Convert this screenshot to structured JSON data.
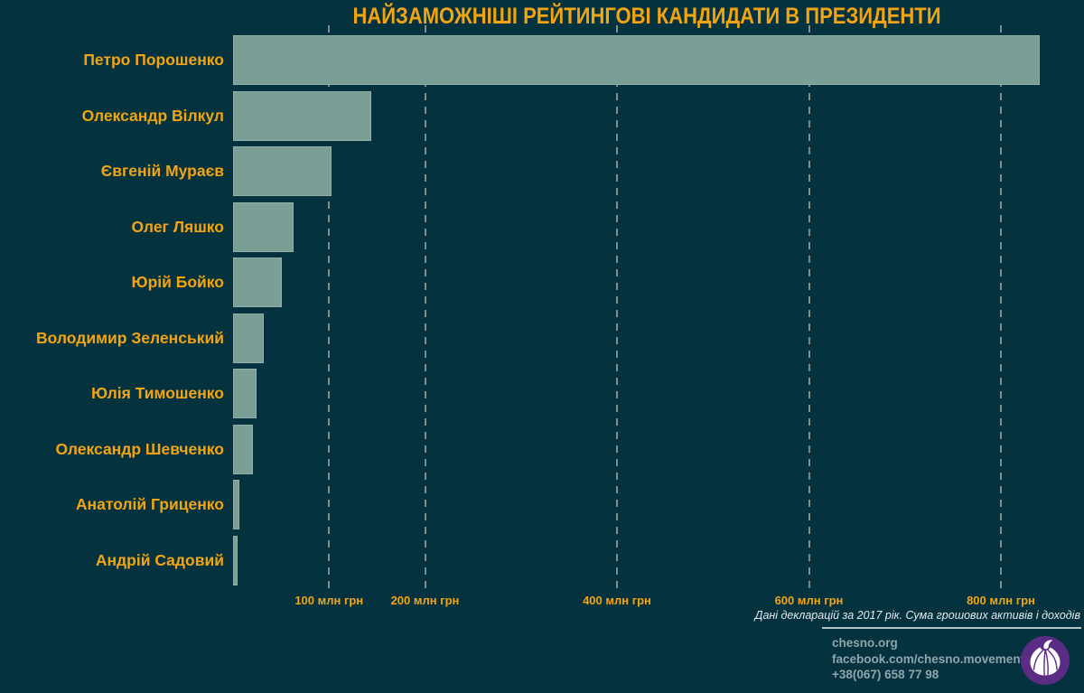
{
  "title": "НАЙЗАМОЖНІШІ РЕЙТИНГОВІ КАНДИДАТИ В ПРЕЗИДЕНТИ",
  "chart_data": {
    "type": "bar",
    "orientation": "horizontal",
    "title": "НАЙЗАМОЖНІШІ РЕЙТИНГОВІ КАНДИДАТИ В ПРЕЗИДЕНТИ",
    "unit": "млн грн",
    "categories": [
      "Петро Порошенко",
      "Олександр Вілкул",
      "Євгеній Мураєв",
      "Олег Ляшко",
      "Юрій Бойко",
      "Володимир Зеленський",
      "Юлія Тимошенко",
      "Олександр Шевченко",
      "Анатолій Гриценко",
      "Андрій Садовий"
    ],
    "values": [
      840,
      144,
      103,
      63,
      51,
      32,
      24,
      21,
      6.5,
      5
    ],
    "xticks": [
      {
        "value": 100,
        "label": "100 млн грн"
      },
      {
        "value": 200,
        "label": "200 млн грн"
      },
      {
        "value": 400,
        "label": "400 млн грн"
      },
      {
        "value": 600,
        "label": "600 млн грн"
      },
      {
        "value": 800,
        "label": "800 млн грн"
      }
    ],
    "xlim": [
      0,
      880
    ],
    "grid": "vertical-dashed",
    "legend": "none",
    "xlabel": "",
    "ylabel": ""
  },
  "footnote": "Дані декларацій за 2017 рік. Сума грошових активів і доходів",
  "footer": {
    "website": "chesno.org",
    "facebook": "facebook.com/chesno.movement",
    "phone": "+38(067) 658 77 98"
  },
  "icons": {
    "logo": "garlic-icon"
  },
  "colors": {
    "background": "#04333f",
    "accent_amber": "#F2A413",
    "bar_fill": "#7B9E97",
    "gridline": "#828D8C",
    "footnote_text": "#E3EAEC",
    "contacts_text": "#8FA5AB",
    "separator": "#B3C4C7",
    "logo_purple": "#5B2C83",
    "logo_garlic": "#FFFFFF"
  }
}
